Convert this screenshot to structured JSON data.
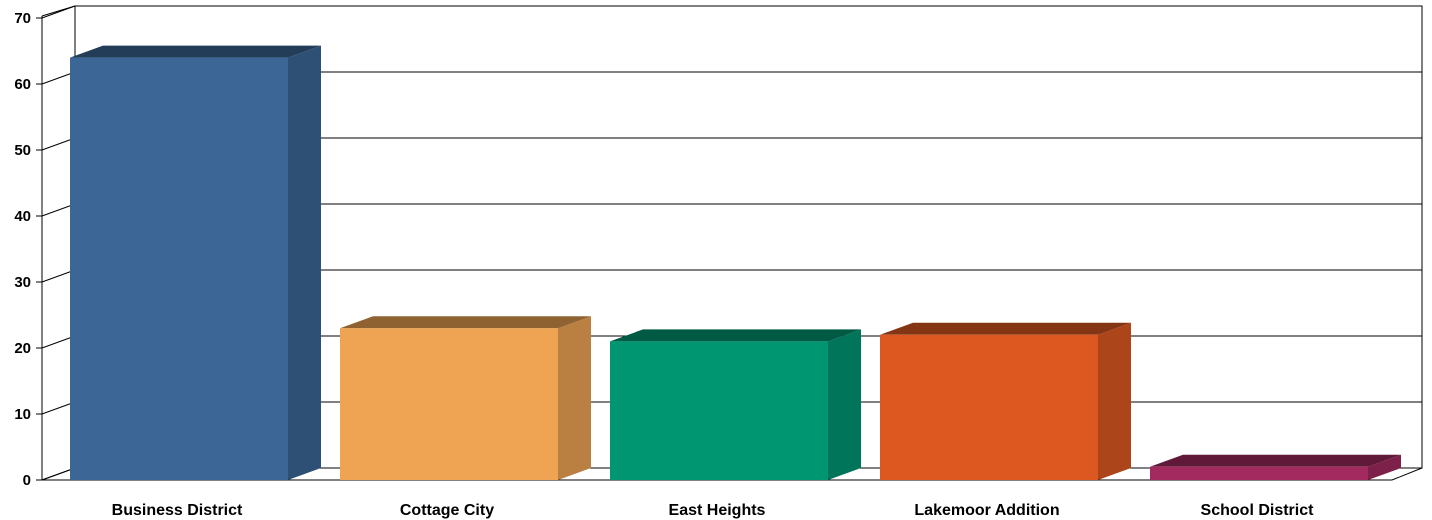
{
  "chart_data": {
    "type": "bar",
    "style": "3d",
    "title": "",
    "xlabel": "",
    "ylabel": "",
    "ylim": [
      0,
      70
    ],
    "yticks": [
      0,
      10,
      20,
      30,
      40,
      50,
      60,
      70
    ],
    "ytick_labels": [
      "0",
      "10",
      "20",
      "30",
      "40",
      "50",
      "60",
      "70"
    ],
    "grid": true,
    "legend": "none",
    "categories": [
      "Business District",
      "Cottage City",
      "East Heights",
      "Lakemoor Addition",
      "School District"
    ],
    "values": [
      64,
      23,
      21,
      22,
      2
    ],
    "colors": [
      "#3b6695",
      "#efa453",
      "#009672",
      "#dc5820",
      "#a22a5f"
    ]
  }
}
